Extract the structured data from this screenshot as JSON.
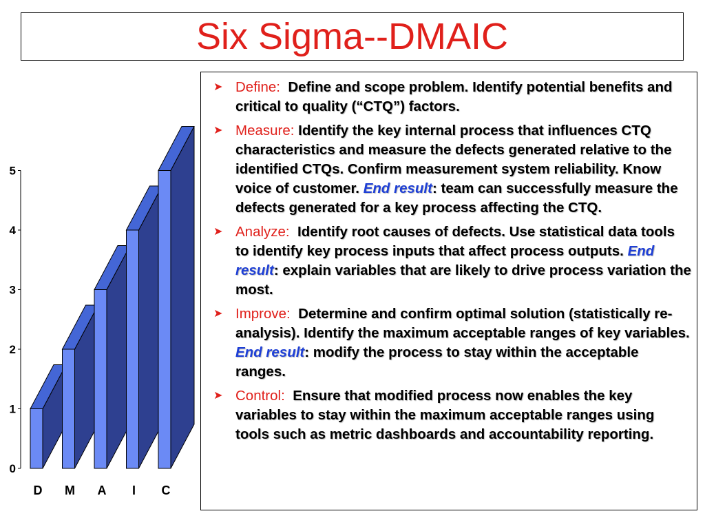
{
  "title": "Six Sigma--DMAIC",
  "colors": {
    "title": "#e0201b",
    "term": "#e0201b",
    "end_result": "#1e3fd6",
    "bar_front": "#6b8af5",
    "bar_top": "#4466d6",
    "bar_side": "#2e4090"
  },
  "bullet_icon": "chevron-right-icon",
  "items": [
    {
      "term": "Define:",
      "text": "Define and scope problem. Identify potential benefits and critical to quality (“CTQ”) factors."
    },
    {
      "term": "Measure:",
      "text": "Identify the key internal process that influences CTQ characteristics and measure the defects generated relative to the identified CTQs. Confirm measurement system reliability. Know voice of customer.",
      "end_result_label": "End result",
      "end_result_text": ": team can successfully measure the defects generated for a key process affecting the CTQ."
    },
    {
      "term": "Analyze:",
      "text": "Identify root causes of defects. Use statistical data tools to identify key process inputs that affect process outputs.",
      "end_result_label": "End result",
      "end_result_text": ": explain variables that are likely to drive process variation the most."
    },
    {
      "term": "Improve:",
      "text": "Determine and confirm optimal solution (statistically re-analysis). Identify the maximum acceptable ranges of key variables.",
      "end_result_label": "End result",
      "end_result_text": ": modify the process to stay within the acceptable ranges."
    },
    {
      "term": "Control:",
      "text": "Ensure that modified process now enables the key variables to stay within the maximum acceptable ranges using tools such as metric dashboards and accountability reporting."
    }
  ],
  "chart_data": {
    "type": "bar",
    "categories": [
      "D",
      "M",
      "A",
      "I",
      "C"
    ],
    "values": [
      1,
      2,
      3,
      4,
      5
    ],
    "ylim": [
      0,
      5
    ],
    "yticks": [
      "0",
      "1",
      "2",
      "3",
      "4",
      "5"
    ],
    "grid": false,
    "style": "3d"
  }
}
